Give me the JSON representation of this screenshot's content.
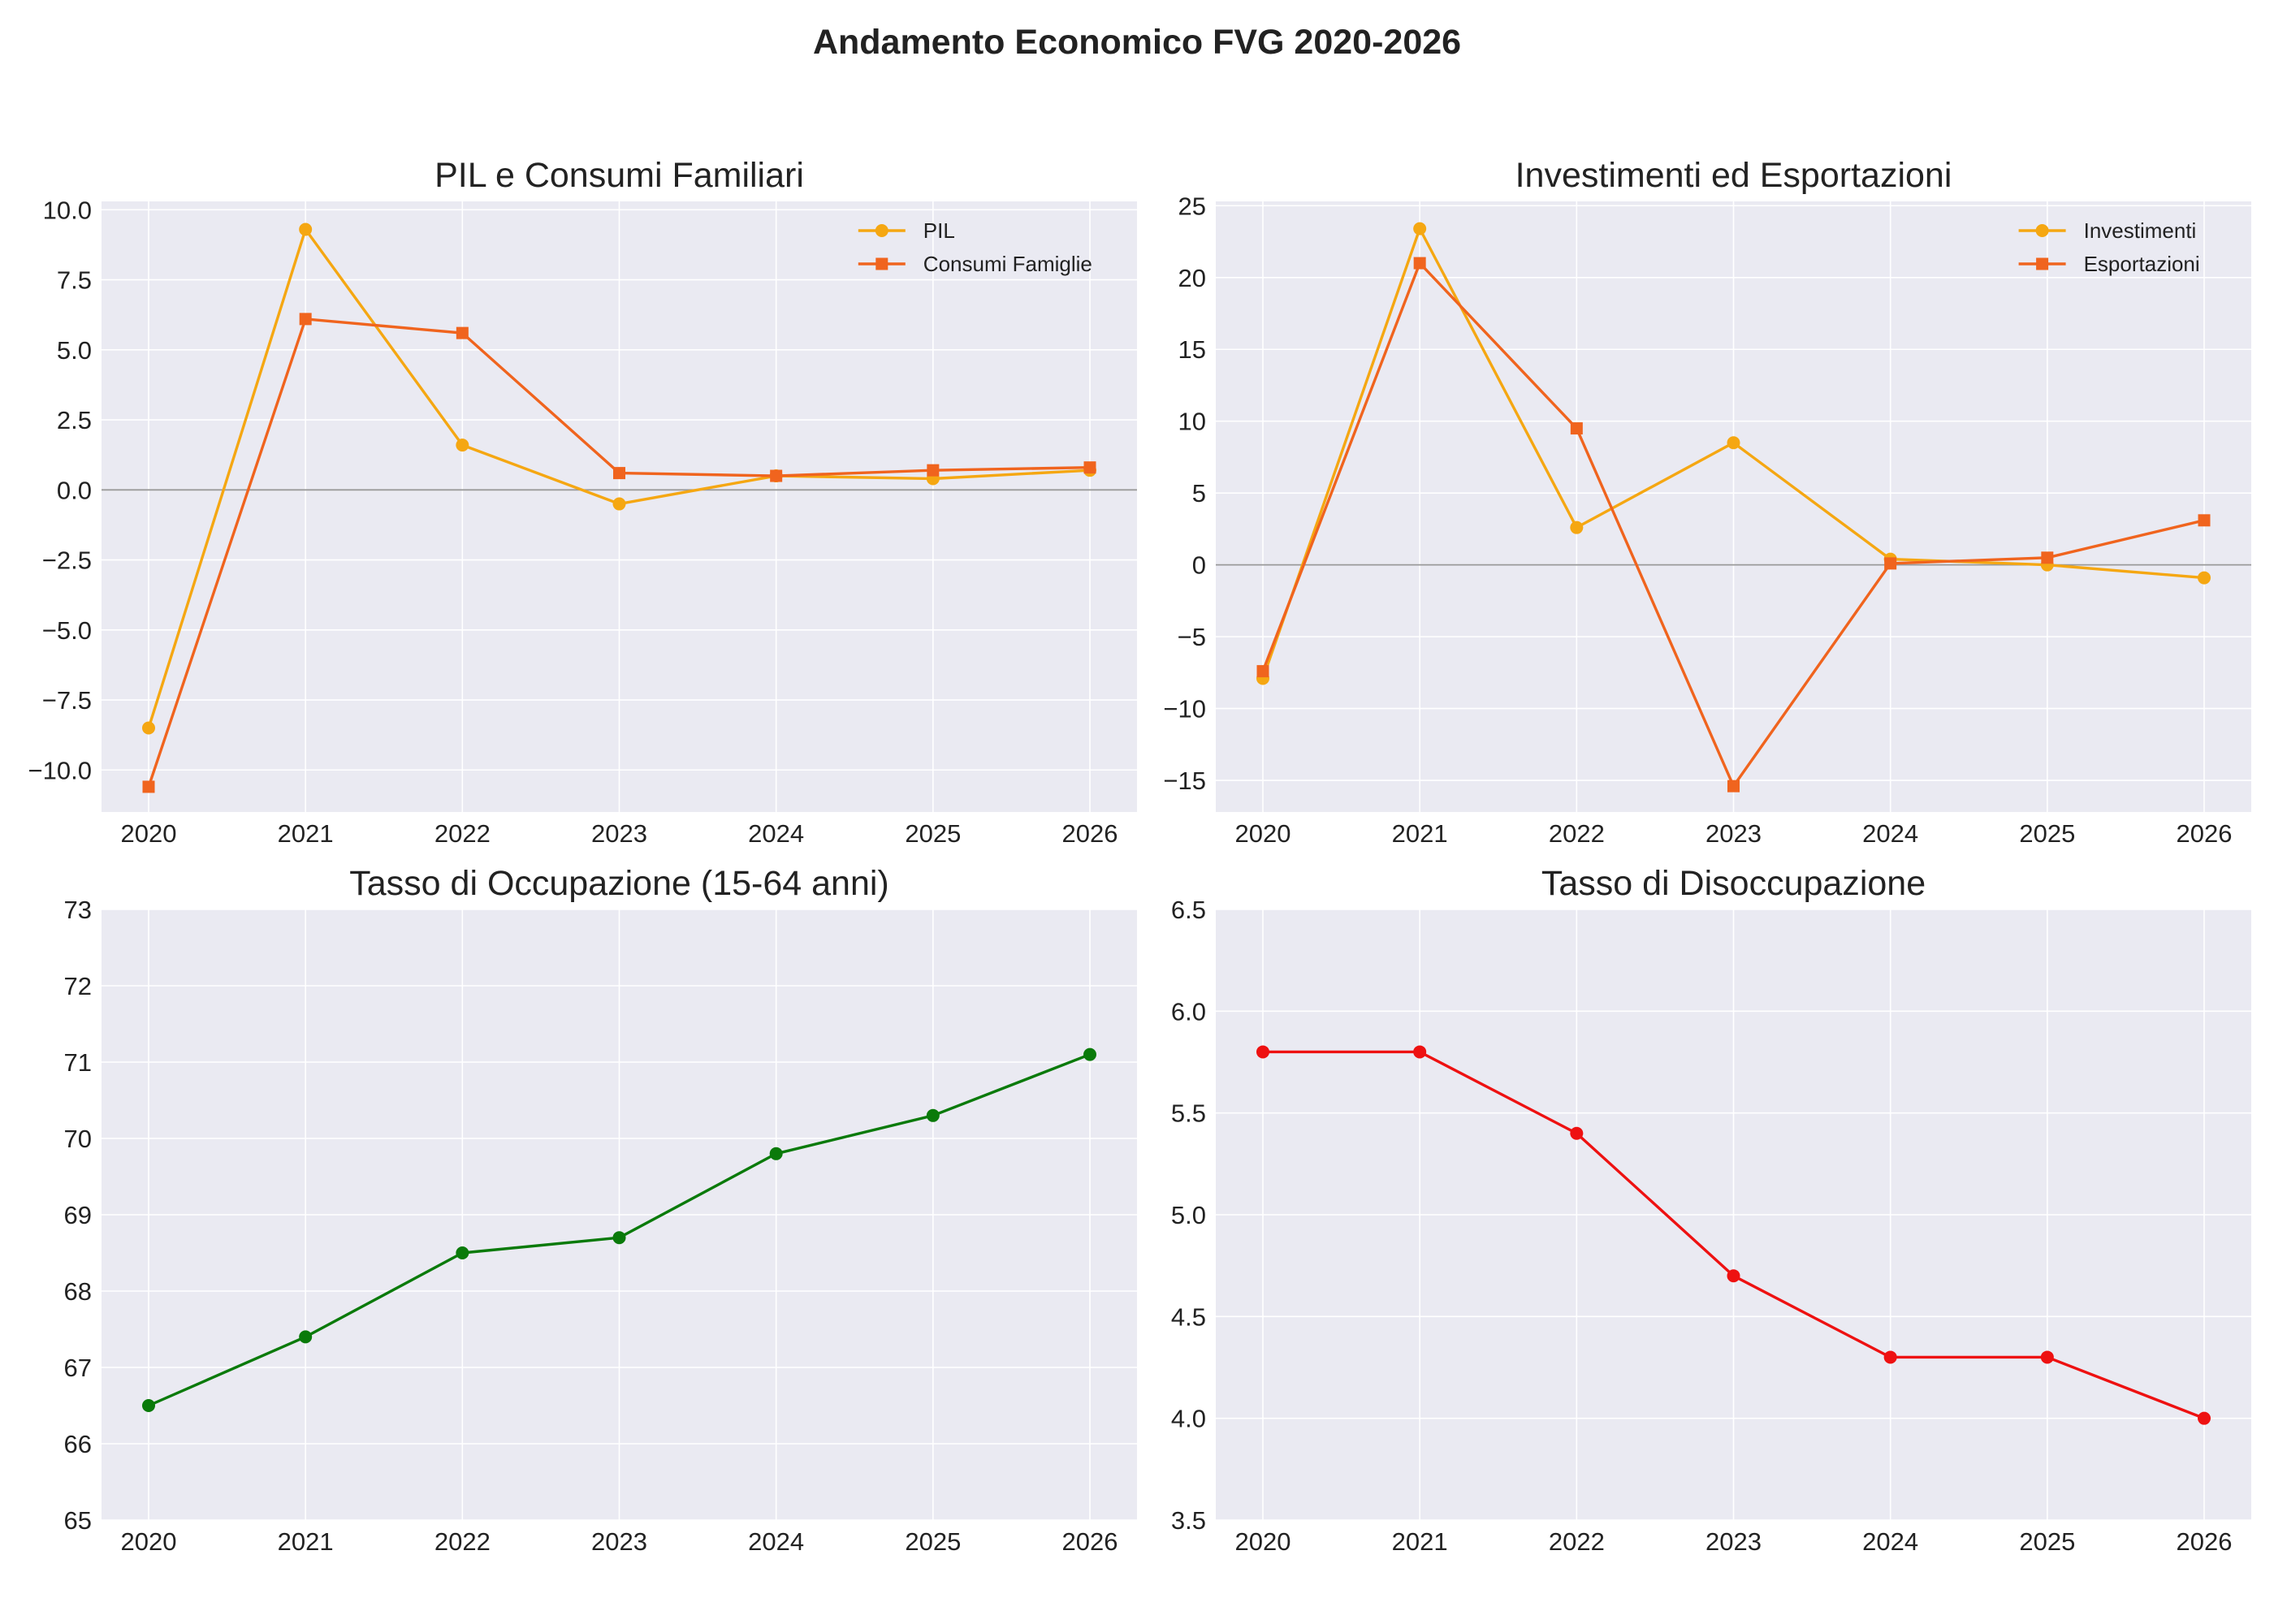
{
  "figure": {
    "title": "Andamento Economico FVG 2020-2026"
  },
  "chart_data": [
    {
      "type": "line",
      "title": "PIL e Consumi Familiari",
      "xlabel": "",
      "ylabel": "",
      "x": [
        "2020",
        "2021",
        "2022",
        "2023",
        "2024",
        "2025",
        "2026"
      ],
      "ylim": [
        -11.5,
        10.3
      ],
      "yticks": [
        10.0,
        7.5,
        5.0,
        2.5,
        0.0,
        -2.5,
        -5.0,
        -7.5,
        -10.0
      ],
      "ytick_labels": [
        "10.0",
        "7.5",
        "5.0",
        "2.5",
        "0.0",
        "−2.5",
        "−5.0",
        "−7.5",
        "−10.0"
      ],
      "zero_line": true,
      "grid": true,
      "legend": "top-right",
      "series": [
        {
          "name": "PIL",
          "color": "#f5a712",
          "marker": "circle",
          "values": [
            -8.5,
            9.3,
            1.6,
            -0.5,
            0.5,
            0.4,
            0.7
          ]
        },
        {
          "name": "Consumi Famiglie",
          "color": "#f0641e",
          "marker": "square",
          "values": [
            -10.6,
            6.1,
            5.6,
            0.6,
            0.5,
            0.7,
            0.8
          ]
        }
      ]
    },
    {
      "type": "line",
      "title": "Investimenti ed Esportazioni",
      "xlabel": "",
      "ylabel": "",
      "x": [
        "2020",
        "2021",
        "2022",
        "2023",
        "2024",
        "2025",
        "2026"
      ],
      "ylim": [
        -17.2,
        25.3
      ],
      "yticks": [
        25,
        20,
        15,
        10,
        5,
        0,
        -5,
        -10,
        -15
      ],
      "ytick_labels": [
        "25",
        "20",
        "15",
        "10",
        "5",
        "0",
        "−5",
        "−10",
        "−15"
      ],
      "zero_line": true,
      "grid": true,
      "legend": "top-right",
      "series": [
        {
          "name": "Investimenti",
          "color": "#f5a712",
          "marker": "circle",
          "values": [
            -7.9,
            23.4,
            2.6,
            8.5,
            0.4,
            0.0,
            -0.9
          ]
        },
        {
          "name": "Esportazioni",
          "color": "#f0641e",
          "marker": "square",
          "values": [
            -7.4,
            21.0,
            9.5,
            -15.4,
            0.1,
            0.5,
            3.1
          ]
        }
      ]
    },
    {
      "type": "line",
      "title": "Tasso di Occupazione (15-64 anni)",
      "xlabel": "",
      "ylabel": "",
      "x": [
        "2020",
        "2021",
        "2022",
        "2023",
        "2024",
        "2025",
        "2026"
      ],
      "ylim": [
        65,
        73
      ],
      "yticks": [
        73,
        72,
        71,
        70,
        69,
        68,
        67,
        66,
        65
      ],
      "ytick_labels": [
        "73",
        "72",
        "71",
        "70",
        "69",
        "68",
        "67",
        "66",
        "65"
      ],
      "zero_line": false,
      "grid": true,
      "legend": "none",
      "series": [
        {
          "color": "#0a7a0a",
          "marker": "circle",
          "values": [
            66.5,
            67.4,
            68.5,
            68.7,
            69.8,
            70.3,
            71.1
          ]
        }
      ]
    },
    {
      "type": "line",
      "title": "Tasso di Disoccupazione",
      "xlabel": "",
      "ylabel": "",
      "x": [
        "2020",
        "2021",
        "2022",
        "2023",
        "2024",
        "2025",
        "2026"
      ],
      "ylim": [
        3.5,
        6.5
      ],
      "yticks": [
        6.5,
        6.0,
        5.5,
        5.0,
        4.5,
        4.0,
        3.5
      ],
      "ytick_labels": [
        "6.5",
        "6.0",
        "5.5",
        "5.0",
        "4.5",
        "4.0",
        "3.5"
      ],
      "zero_line": false,
      "grid": true,
      "legend": "none",
      "series": [
        {
          "color": "#ee1111",
          "marker": "circle",
          "values": [
            5.8,
            5.8,
            5.4,
            4.7,
            4.3,
            4.3,
            4.0
          ]
        }
      ]
    }
  ]
}
